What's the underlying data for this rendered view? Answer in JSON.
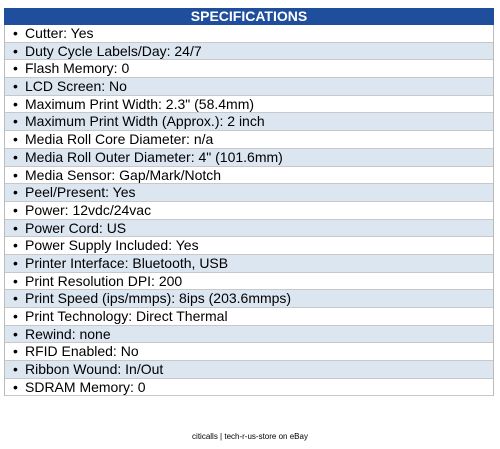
{
  "header": {
    "title": "SPECIFICATIONS"
  },
  "specs": [
    "Cutter: Yes",
    "Duty Cycle Labels/Day: 24/7",
    "Flash Memory: 0",
    "LCD Screen: No",
    "Maximum Print Width: 2.3\" (58.4mm)",
    "Maximum Print Width (Approx.): 2 inch",
    "Media Roll Core Diameter: n/a",
    "Media Roll Outer Diameter: 4\" (101.6mm)",
    "Media Sensor: Gap/Mark/Notch",
    "Peel/Present: Yes",
    "Power: 12vdc/24vac",
    "Power Cord: US",
    "Power Supply Included: Yes",
    "Printer Interface: Bluetooth, USB",
    "Print Resolution DPI: 200",
    "Print Speed (ips/mmps): 8ips (203.6mmps)",
    "Print Technology: Direct Thermal",
    "Rewind: none",
    "RFID Enabled: No",
    "Ribbon Wound: In/Out",
    "SDRAM Memory: 0"
  ],
  "footer": {
    "text": "citicalls | tech-r-us-store on eBay"
  }
}
